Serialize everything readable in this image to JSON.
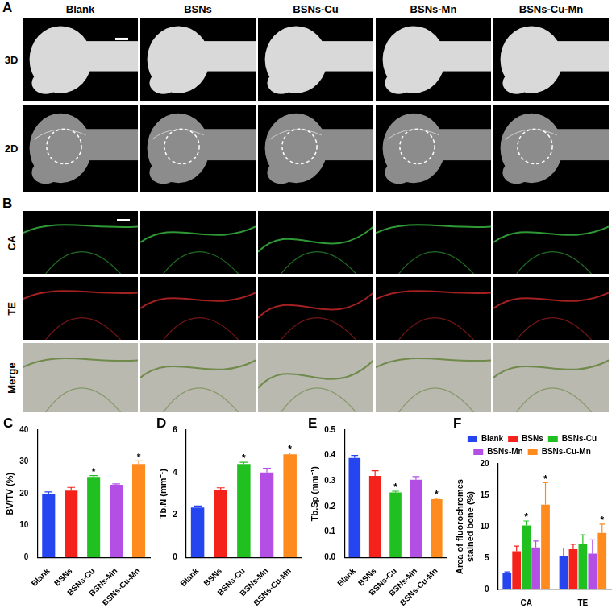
{
  "figure": {
    "A": {
      "label": "A",
      "columns": [
        "Blank",
        "BSNs",
        "BSNs-Cu",
        "BSNs-Mn",
        "BSNs-Cu-Mn"
      ],
      "rows": [
        "3D",
        "2D"
      ]
    },
    "B": {
      "label": "B",
      "rows": [
        "CA",
        "TE",
        "Merge"
      ]
    }
  },
  "chart_data": [
    {
      "panel": "C",
      "type": "bar",
      "categories": [
        "Blank",
        "BSNs",
        "BSNs-Cu",
        "BSNs-Mn",
        "BSNs-Cu-Mn"
      ],
      "values": [
        20,
        21,
        25.3,
        22.8,
        29.3
      ],
      "errors": [
        0.6,
        1.0,
        0.4,
        0.3,
        1.0
      ],
      "annotations": [
        null,
        null,
        "*",
        null,
        "*"
      ],
      "colors": [
        "#2545f0",
        "#f5221b",
        "#21c021",
        "#b44fe6",
        "#ff8a1e"
      ],
      "y_label": "BV/TV (%)",
      "ylim": [
        0,
        40
      ],
      "yticks": [
        0,
        10,
        20,
        30,
        40
      ],
      "grid": false
    },
    {
      "panel": "D",
      "type": "bar",
      "categories": [
        "Blank",
        "BSNs",
        "BSNs-Cu",
        "BSNs-Mn",
        "BSNs-Cu-Mn"
      ],
      "values": [
        2.35,
        3.2,
        4.4,
        4.0,
        4.85
      ],
      "errors": [
        0.07,
        0.08,
        0.08,
        0.2,
        0.07
      ],
      "annotations": [
        null,
        null,
        "*",
        null,
        "*"
      ],
      "colors": [
        "#2545f0",
        "#f5221b",
        "#21c021",
        "#b44fe6",
        "#ff8a1e"
      ],
      "y_label": "Tb.N (mm⁻¹)",
      "ylim": [
        0,
        6
      ],
      "yticks": [
        0,
        2,
        4,
        6
      ],
      "grid": false
    },
    {
      "panel": "E",
      "type": "bar",
      "categories": [
        "Blank",
        "BSNs",
        "BSNs-Cu",
        "BSNs-Mn",
        "BSNs-Cu-Mn"
      ],
      "values": [
        0.39,
        0.32,
        0.255,
        0.305,
        0.228
      ],
      "errors": [
        0.01,
        0.02,
        0.005,
        0.012,
        0.005
      ],
      "annotations": [
        null,
        null,
        "*",
        null,
        "*"
      ],
      "colors": [
        "#2545f0",
        "#f5221b",
        "#21c021",
        "#b44fe6",
        "#ff8a1e"
      ],
      "y_label": "Tb.Sp (mm⁻¹)",
      "ylim": [
        0,
        0.5
      ],
      "yticks": [
        {
          "value": 0,
          "label": "0.0"
        },
        0.1,
        0.2,
        0.3,
        0.4,
        0.5
      ],
      "grid": false
    },
    {
      "panel": "F",
      "type": "bar",
      "categories": [
        "CA",
        "TE"
      ],
      "series": [
        {
          "name": "Blank",
          "color": "#2545f0",
          "values": [
            2.6,
            5.3
          ],
          "errors": [
            0.2,
            1.3
          ],
          "annotations": [
            null,
            null
          ]
        },
        {
          "name": "BSNs",
          "color": "#f5221b",
          "values": [
            6.1,
            6.4
          ],
          "errors": [
            0.8,
            0.8
          ],
          "annotations": [
            null,
            null
          ]
        },
        {
          "name": "BSNs-Cu",
          "color": "#21c021",
          "values": [
            10.2,
            7.2
          ],
          "errors": [
            0.7,
            1.5
          ],
          "annotations": [
            "*",
            null
          ]
        },
        {
          "name": "BSNs-Mn",
          "color": "#b44fe6",
          "values": [
            6.7,
            5.7
          ],
          "errors": [
            1.0,
            2.2
          ],
          "annotations": [
            null,
            null
          ]
        },
        {
          "name": "BSNs-Cu-Mn",
          "color": "#ff8a1e",
          "values": [
            13.5,
            9.0
          ],
          "errors": [
            3.5,
            1.4
          ],
          "annotations": [
            "*",
            "*"
          ]
        }
      ],
      "y_label": [
        "Area of fluorochromes",
        "stained bone (%)"
      ],
      "legend": "top",
      "ylim": [
        0,
        20
      ],
      "yticks": [
        0,
        5,
        10,
        15,
        20
      ],
      "grid": false
    }
  ]
}
